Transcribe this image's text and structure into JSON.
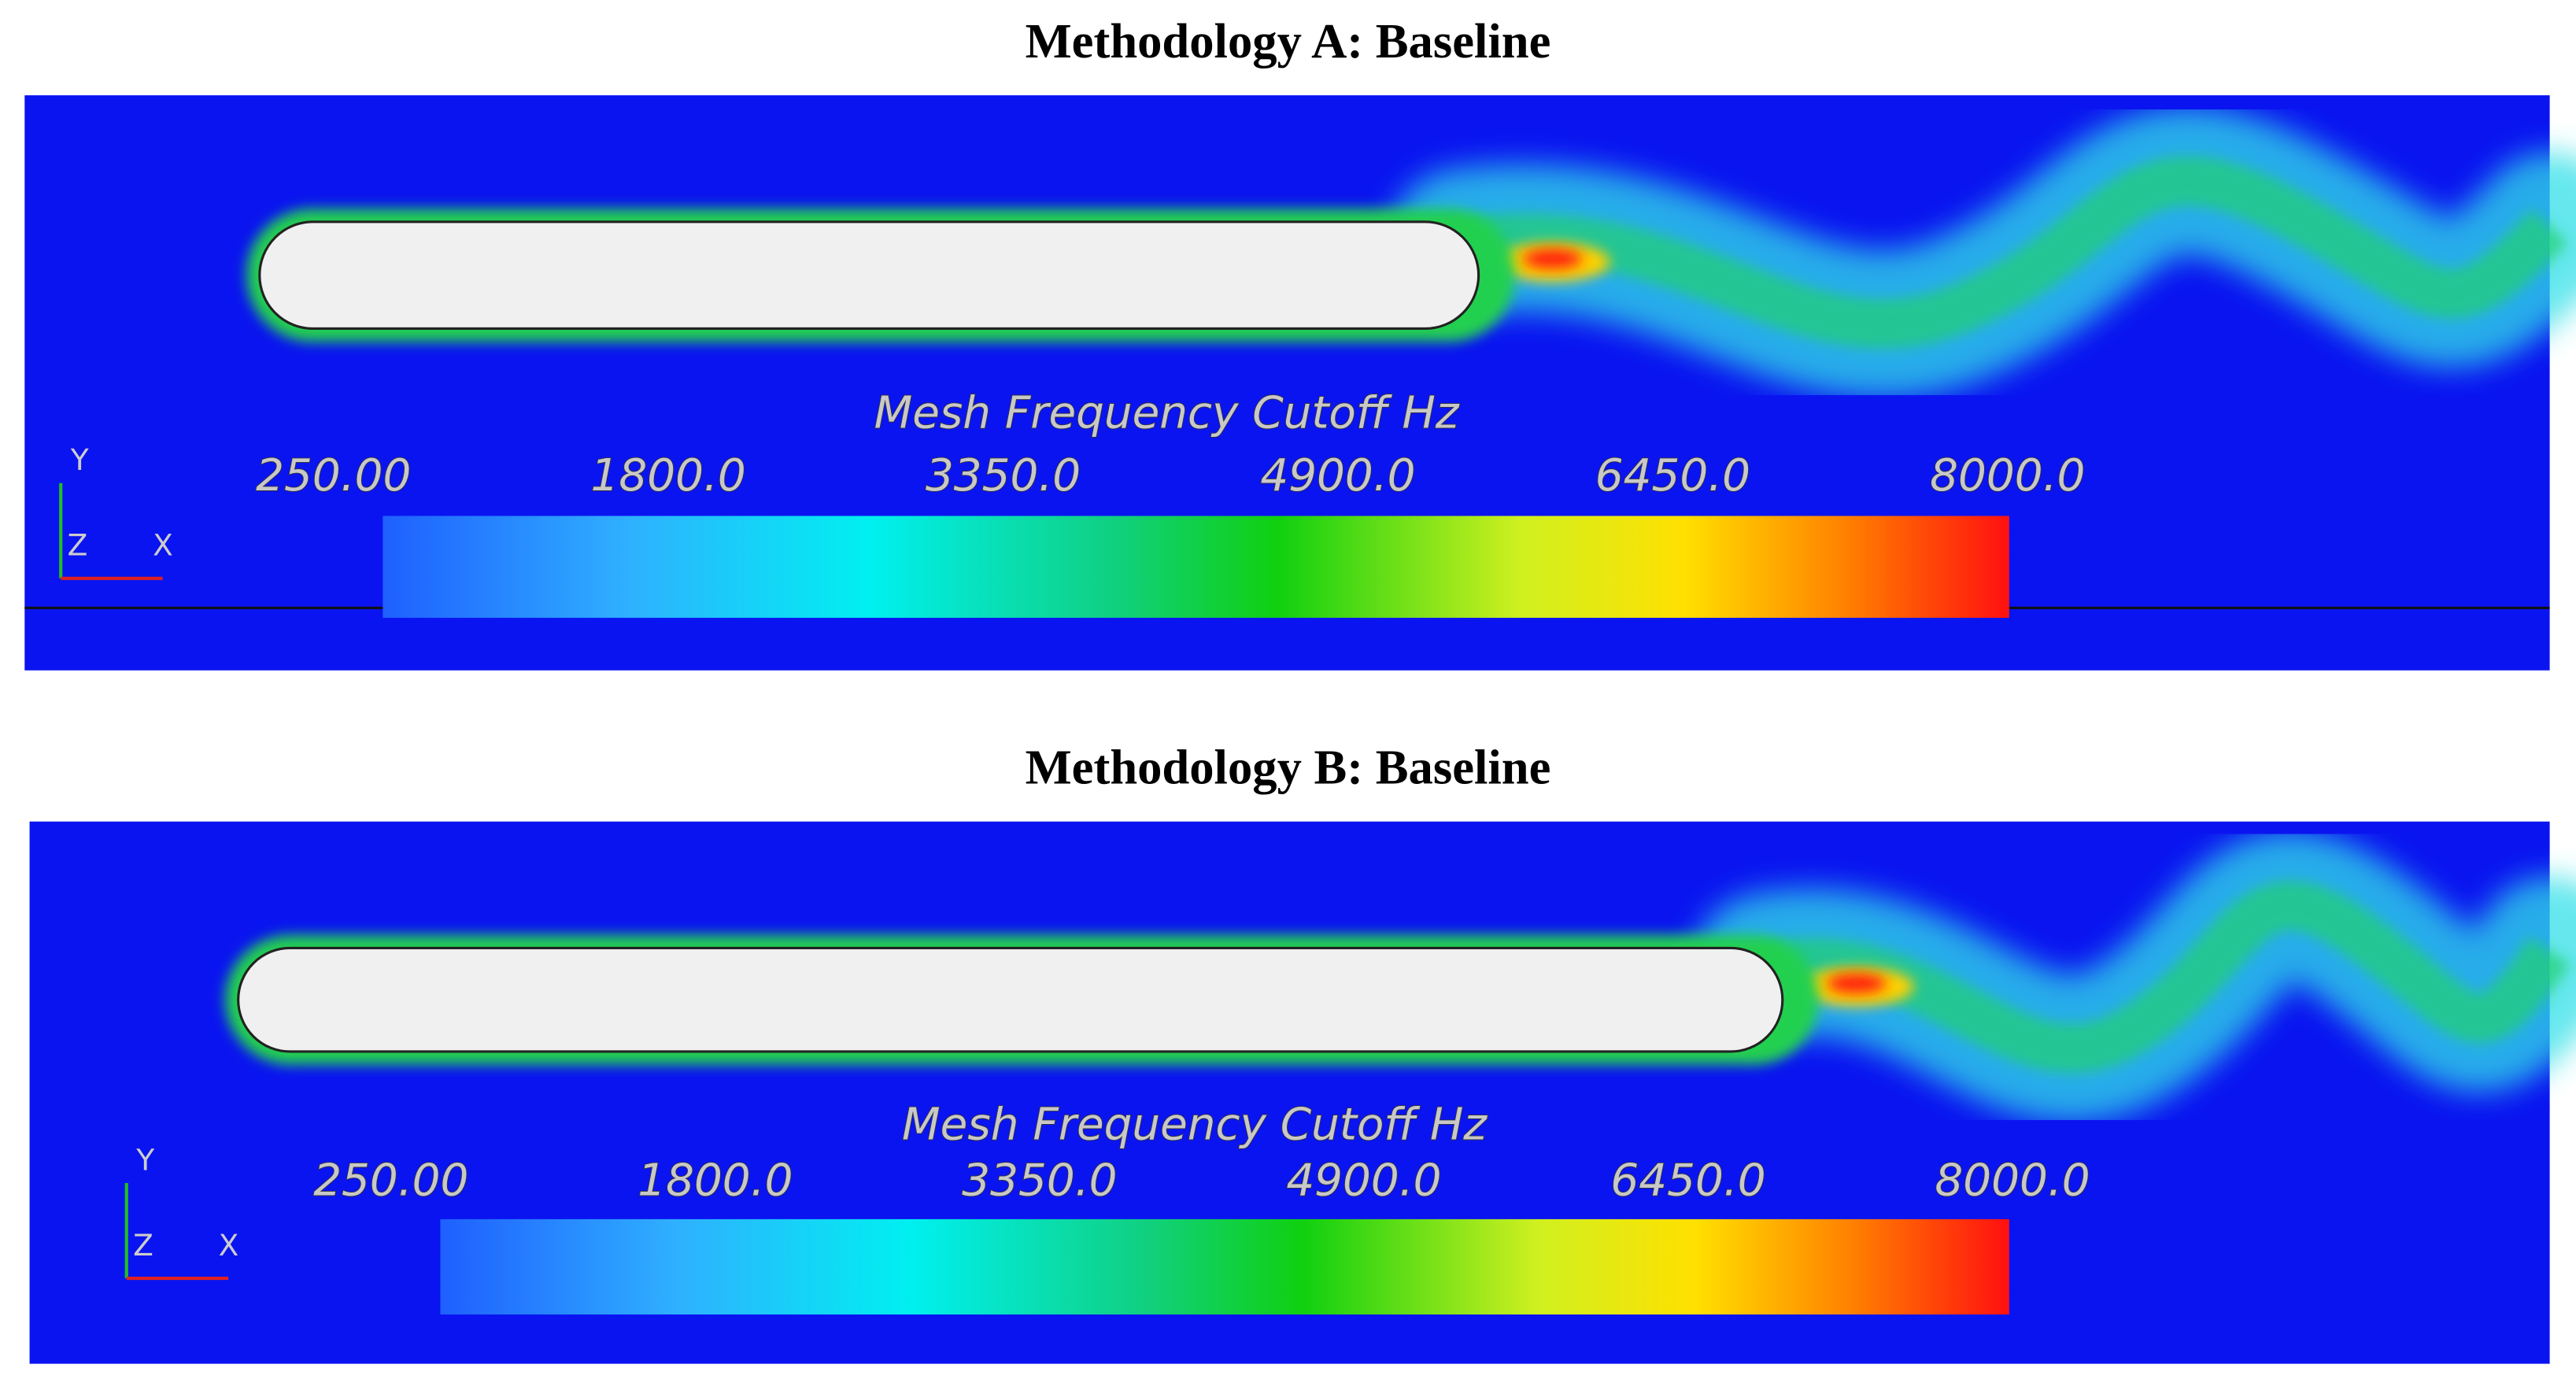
{
  "panels": [
    {
      "title": "Methodology A: Baseline",
      "colorbar": {
        "title": "Mesh Frequency Cutoff Hz",
        "ticks": [
          {
            "value": 250,
            "label": "250.00"
          },
          {
            "value": 1800,
            "label": "1800.0"
          },
          {
            "value": 3350,
            "label": "3350.0"
          },
          {
            "value": 4900,
            "label": "4900.0"
          },
          {
            "value": 6450,
            "label": "6450.0"
          },
          {
            "value": 8000,
            "label": "8000.0"
          }
        ]
      },
      "axes": {
        "y": "Y",
        "z": "Z",
        "x": "X"
      }
    },
    {
      "title": "Methodology B: Baseline",
      "colorbar": {
        "title": "Mesh Frequency Cutoff Hz",
        "ticks": [
          {
            "value": 250,
            "label": "250.00"
          },
          {
            "value": 1800,
            "label": "1800.0"
          },
          {
            "value": 3350,
            "label": "3350.0"
          },
          {
            "value": 4900,
            "label": "4900.0"
          },
          {
            "value": 6450,
            "label": "6450.0"
          },
          {
            "value": 8000,
            "label": "8000.0"
          }
        ]
      },
      "axes": {
        "y": "Y",
        "z": "Z",
        "x": "X"
      }
    }
  ]
}
